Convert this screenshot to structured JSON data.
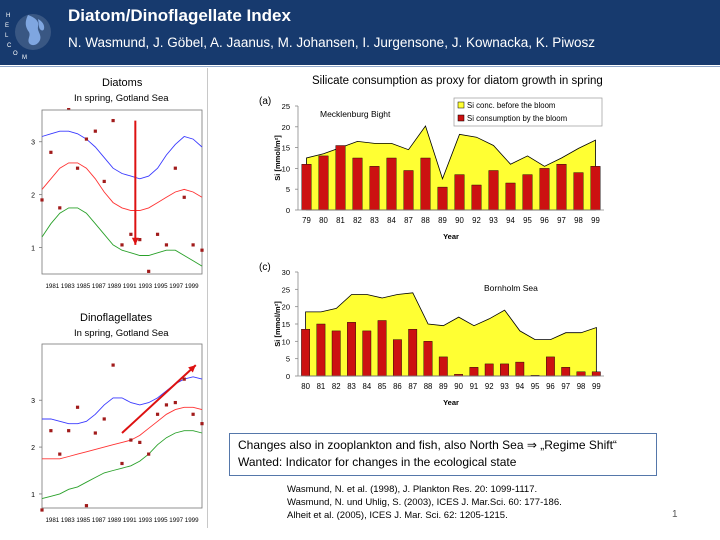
{
  "header": {
    "title": "Diatom/Dinoflagellate Index",
    "authors": "N. Wasmund, J. Göbel, A. Jaanus, M. Johansen, I. Jurgensone, J. Kownacka, K. Piwosz",
    "logo_letters": "HELCOM"
  },
  "left": {
    "diatoms_title": "Diatoms",
    "diatoms_subtitle": "In spring, Gotland Sea",
    "dino_title": "Dinoflagellates",
    "dino_subtitle": "In spring, Gotland Sea",
    "year_axis": "1981 1983 1985 1987 1989 1991 1993 1995 1997 1999"
  },
  "right": {
    "heading": "Silicate consumption as proxy for diatom growth in spring",
    "panel_a": "(a)",
    "panel_c": "(c)"
  },
  "note": {
    "line1": "Changes also in zooplankton and fish, also North Sea ⇒ „Regime Shift“",
    "line2": "Wanted: Indicator for changes in the ecological state"
  },
  "references": [
    "Wasmund, N. et al. (1998), J. Plankton Res. 20: 1099-1117.",
    "Wasmund, N. und Uhlig, S. (2003),  ICES J. Mar.Sci. 60: 177-186.",
    "Alheit et al. (2005), ICES J. Mar. Sci. 62: 1205-1215."
  ],
  "page_number": "1",
  "colors": {
    "header_bg": "#173a6e",
    "fill_yellow": "#ffff33",
    "bar_red": "#cc1111",
    "arrow_red": "#dd1111",
    "trend_blue": "#3a3aff",
    "trend_green": "#2aa12a",
    "point": "#a11b1b"
  },
  "chart_data": [
    {
      "type": "scatter",
      "title": "Diatoms",
      "subtitle": "In spring, Gotland Sea",
      "ylim": [
        0.5,
        3.6
      ],
      "yticks": [
        1,
        2,
        3
      ],
      "x_tick_label_text": "1981 1983 1985 1987 1989 1991 1993 1995 1997 1999",
      "x": [
        1981,
        1982,
        1983,
        1984,
        1985,
        1986,
        1987,
        1988,
        1989,
        1990,
        1991,
        1992,
        1993,
        1994,
        1995,
        1996,
        1997,
        1998,
        1999
      ],
      "values": [
        1.9,
        2.8,
        1.75,
        3.9,
        2.5,
        3.05,
        3.2,
        2.25,
        3.4,
        1.05,
        1.25,
        1.15,
        0.55,
        1.25,
        1.05,
        2.5,
        1.95,
        1.05,
        0.95
      ],
      "trend_upper": [
        3.1,
        3.15,
        3.2,
        3.2,
        3.15,
        3.05,
        2.9,
        2.7,
        2.5,
        2.4,
        2.35,
        2.3,
        2.35,
        2.5,
        2.75,
        2.95,
        3.1,
        3.05,
        2.9
      ],
      "trend_center": [
        2.1,
        2.3,
        2.5,
        2.6,
        2.6,
        2.5,
        2.3,
        2.05,
        1.85,
        1.75,
        1.7,
        1.7,
        1.75,
        1.85,
        1.95,
        2.05,
        2.1,
        2.05,
        1.95
      ],
      "trend_lower": [
        1.2,
        1.45,
        1.65,
        1.75,
        1.75,
        1.65,
        1.45,
        1.25,
        1.05,
        0.95,
        0.9,
        0.85,
        0.85,
        0.9,
        0.95,
        0.95,
        0.85,
        0.75,
        0.65
      ],
      "arrow": {
        "from": [
          1991.5,
          3.4
        ],
        "to": [
          1991.5,
          1.05
        ]
      }
    },
    {
      "type": "scatter",
      "title": "Dinoflagellates",
      "subtitle": "In spring, Gotland Sea",
      "ylim": [
        0.7,
        4.2
      ],
      "yticks": [
        1,
        2,
        3
      ],
      "x_tick_label_text": "1981 1983 1985 1987 1989 1991 1993 1995 1997 1999",
      "x": [
        1981,
        1982,
        1983,
        1984,
        1985,
        1986,
        1987,
        1988,
        1989,
        1990,
        1991,
        1992,
        1993,
        1994,
        1995,
        1996,
        1997,
        1998,
        1999
      ],
      "values": [
        0.55,
        2.35,
        1.85,
        2.35,
        2.85,
        0.75,
        2.3,
        2.6,
        3.75,
        1.65,
        2.15,
        2.1,
        1.85,
        2.7,
        2.9,
        2.95,
        3.45,
        2.7,
        2.5
      ],
      "trend_upper": [
        2.6,
        2.6,
        2.55,
        2.5,
        2.5,
        2.55,
        2.7,
        2.9,
        3.05,
        3.05,
        2.95,
        2.9,
        2.95,
        3.05,
        3.2,
        3.35,
        3.45,
        3.5,
        3.45
      ],
      "trend_center": [
        1.75,
        1.75,
        1.75,
        1.8,
        1.85,
        1.9,
        1.95,
        2.0,
        2.05,
        2.1,
        2.15,
        2.25,
        2.4,
        2.55,
        2.7,
        2.8,
        2.85,
        2.85,
        2.8
      ],
      "trend_lower": [
        0.9,
        0.95,
        1.0,
        1.1,
        1.15,
        1.25,
        1.35,
        1.45,
        1.5,
        1.55,
        1.6,
        1.7,
        1.85,
        2.05,
        2.2,
        2.3,
        2.35,
        2.35,
        2.3
      ],
      "arrow": {
        "from": [
          1990,
          2.3
        ],
        "to": [
          1998.3,
          3.75
        ]
      }
    },
    {
      "type": "bar",
      "panel": "(a)",
      "annotation": "Mecklenburg Bight",
      "ylabel": "Si [mmol/m²]",
      "xlabel": "Year",
      "ylim": [
        0,
        25
      ],
      "yticks": [
        0,
        5,
        10,
        15,
        20,
        25
      ],
      "categories": [
        "79",
        "80",
        "81",
        "82",
        "83",
        "84",
        "87",
        "88",
        "89",
        "90",
        "92",
        "93",
        "94",
        "95",
        "96",
        "97",
        "98",
        "99"
      ],
      "series": [
        {
          "name": "Si conc. before the bloom",
          "type": "area",
          "values": [
            12.5,
            13.5,
            15,
            16.5,
            16,
            16,
            14.5,
            20.2,
            7.5,
            18.2,
            17.5,
            15.5,
            11,
            13,
            10.5,
            12.5,
            14.8,
            16.8
          ]
        },
        {
          "name": "Si consumption by the bloom",
          "type": "bar",
          "values": [
            11,
            13,
            15.5,
            12.5,
            10.5,
            12.5,
            9.5,
            12.5,
            5.5,
            8.5,
            6,
            9.5,
            6.5,
            8.5,
            10,
            11,
            9,
            10.5
          ]
        }
      ],
      "legend": "top-right"
    },
    {
      "type": "bar",
      "panel": "(c)",
      "annotation": "Bornholm Sea",
      "ylabel": "Si [mmol/m²]",
      "xlabel": "Year",
      "ylim": [
        0,
        30
      ],
      "yticks": [
        0,
        5,
        10,
        15,
        20,
        25,
        30
      ],
      "categories": [
        "80",
        "81",
        "82",
        "83",
        "84",
        "85",
        "86",
        "87",
        "88",
        "89",
        "90",
        "91",
        "92",
        "93",
        "94",
        "95",
        "96",
        "97",
        "98",
        "99"
      ],
      "series": [
        {
          "name": "Si conc. before the bloom",
          "type": "area",
          "values": [
            18.5,
            18.5,
            19.5,
            23.5,
            23.5,
            22.5,
            23.5,
            24,
            15,
            14.5,
            17,
            14.5,
            16.5,
            19,
            13,
            10.5,
            10.5,
            12.5,
            12.5,
            14
          ]
        },
        {
          "name": "Si consumption by the bloom",
          "type": "bar",
          "values": [
            13.5,
            15,
            13,
            15.5,
            13,
            16,
            10.5,
            13.5,
            10,
            5.5,
            0.5,
            2.5,
            3.5,
            3.5,
            4,
            0.2,
            5.5,
            2.5,
            1.2,
            1.2
          ]
        }
      ],
      "legend": "top-right"
    }
  ]
}
